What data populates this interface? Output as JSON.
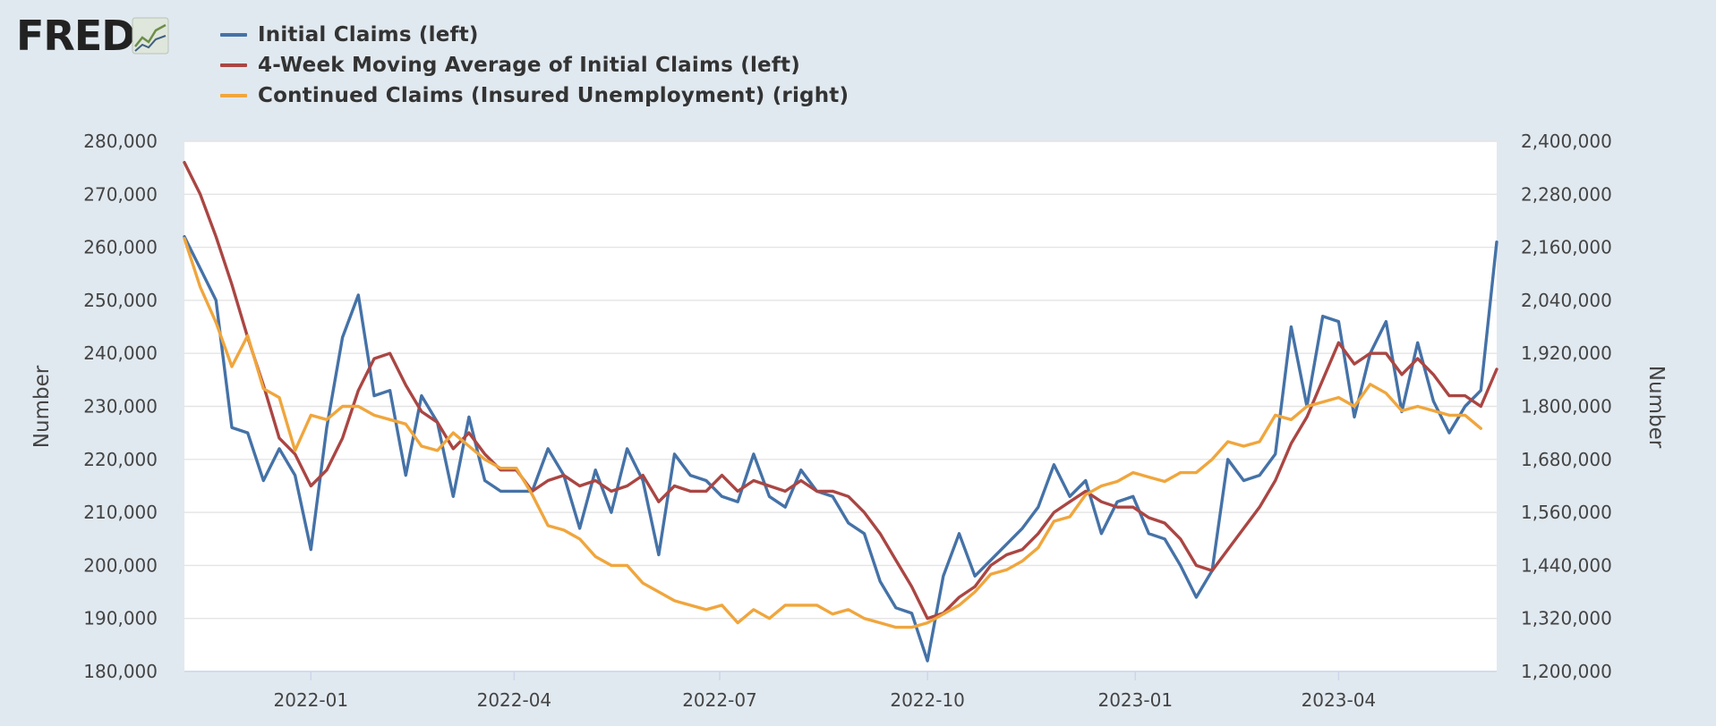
{
  "brand": {
    "name": "FRED",
    "icon": "fred-sparkline-icon"
  },
  "chart_data": {
    "type": "line",
    "legend_position": "top-left",
    "grid": true,
    "x_ticks": [
      {
        "date": "2022-01-01",
        "label": "2022-01"
      },
      {
        "date": "2022-04-01",
        "label": "2022-04"
      },
      {
        "date": "2022-07-01",
        "label": "2022-07"
      },
      {
        "date": "2022-10-01",
        "label": "2022-10"
      },
      {
        "date": "2023-01-01",
        "label": "2023-01"
      },
      {
        "date": "2023-04-01",
        "label": "2023-04"
      }
    ],
    "x_range": [
      "2021-11-06",
      "2023-06-10"
    ],
    "left_axis": {
      "title": "Number",
      "ylim": [
        180000,
        280000
      ],
      "ticks": [
        {
          "value": 180000,
          "label": "180,000"
        },
        {
          "value": 190000,
          "label": "190,000"
        },
        {
          "value": 200000,
          "label": "200,000"
        },
        {
          "value": 210000,
          "label": "210,000"
        },
        {
          "value": 220000,
          "label": "220,000"
        },
        {
          "value": 230000,
          "label": "230,000"
        },
        {
          "value": 240000,
          "label": "240,000"
        },
        {
          "value": 250000,
          "label": "250,000"
        },
        {
          "value": 260000,
          "label": "260,000"
        },
        {
          "value": 270000,
          "label": "270,000"
        },
        {
          "value": 280000,
          "label": "280,000"
        }
      ]
    },
    "right_axis": {
      "title": "Number",
      "ylim": [
        1200000,
        2400000
      ],
      "ticks": [
        {
          "value": 1200000,
          "label": "1,200,000"
        },
        {
          "value": 1320000,
          "label": "1,320,000"
        },
        {
          "value": 1440000,
          "label": "1,440,000"
        },
        {
          "value": 1560000,
          "label": "1,560,000"
        },
        {
          "value": 1680000,
          "label": "1,680,000"
        },
        {
          "value": 1800000,
          "label": "1,800,000"
        },
        {
          "value": 1920000,
          "label": "1,920,000"
        },
        {
          "value": 2040000,
          "label": "2,040,000"
        },
        {
          "value": 2160000,
          "label": "2,160,000"
        },
        {
          "value": 2280000,
          "label": "2,280,000"
        },
        {
          "value": 2400000,
          "label": "2,400,000"
        }
      ]
    },
    "series": [
      {
        "name": "Initial Claims (left)",
        "axis": "left",
        "color": "#4572a7",
        "start_date": "2021-11-06",
        "values": [
          262000,
          256000,
          250000,
          226000,
          225000,
          216000,
          222000,
          217000,
          203000,
          226000,
          243000,
          251000,
          232000,
          233000,
          217000,
          232000,
          227000,
          213000,
          228000,
          216000,
          214000,
          214000,
          214000,
          222000,
          217000,
          207000,
          218000,
          210000,
          222000,
          216000,
          202000,
          221000,
          217000,
          216000,
          213000,
          212000,
          221000,
          213000,
          211000,
          218000,
          214000,
          213000,
          208000,
          206000,
          197000,
          192000,
          191000,
          182000,
          198000,
          206000,
          198000,
          201000,
          204000,
          207000,
          211000,
          219000,
          213000,
          216000,
          206000,
          212000,
          213000,
          206000,
          205000,
          200000,
          194000,
          199000,
          220000,
          216000,
          217000,
          221000,
          245000,
          230000,
          247000,
          246000,
          228000,
          240000,
          246000,
          229000,
          242000,
          231000,
          225000,
          230000,
          233000,
          261000
        ]
      },
      {
        "name": "4-Week Moving Average of Initial Claims (left)",
        "axis": "left",
        "color": "#aa4643",
        "start_date": "2021-11-06",
        "values": [
          276000,
          270000,
          262000,
          253000,
          243000,
          234000,
          224000,
          221000,
          215000,
          218000,
          224000,
          233000,
          239000,
          240000,
          234000,
          229000,
          227000,
          222000,
          225000,
          221000,
          218000,
          218000,
          214000,
          216000,
          217000,
          215000,
          216000,
          214000,
          215000,
          217000,
          212000,
          215000,
          214000,
          214000,
          217000,
          214000,
          216000,
          215000,
          214000,
          216000,
          214000,
          214000,
          213000,
          210000,
          206000,
          201000,
          196000,
          190000,
          191000,
          194000,
          196000,
          200000,
          202000,
          203000,
          206000,
          210000,
          212000,
          214000,
          212000,
          211000,
          211000,
          209000,
          208000,
          205000,
          200000,
          199000,
          203000,
          207000,
          211000,
          216000,
          223000,
          228000,
          235000,
          242000,
          238000,
          240000,
          240000,
          236000,
          239000,
          236000,
          232000,
          232000,
          230000,
          237000
        ]
      },
      {
        "name": "Continued Claims (Insured Unemployment) (right)",
        "axis": "right",
        "color": "#f0a63d",
        "start_date": "2021-11-06",
        "values": [
          2180000,
          2070000,
          1990000,
          1890000,
          1960000,
          1840000,
          1820000,
          1700000,
          1780000,
          1770000,
          1800000,
          1800000,
          1780000,
          1770000,
          1760000,
          1710000,
          1700000,
          1740000,
          1710000,
          1680000,
          1660000,
          1660000,
          1600000,
          1530000,
          1520000,
          1500000,
          1460000,
          1440000,
          1440000,
          1400000,
          1380000,
          1360000,
          1350000,
          1340000,
          1350000,
          1310000,
          1340000,
          1320000,
          1350000,
          1350000,
          1350000,
          1330000,
          1340000,
          1320000,
          1310000,
          1300000,
          1300000,
          1310000,
          1330000,
          1350000,
          1380000,
          1420000,
          1430000,
          1450000,
          1480000,
          1540000,
          1550000,
          1600000,
          1620000,
          1630000,
          1650000,
          1640000,
          1630000,
          1650000,
          1650000,
          1680000,
          1720000,
          1710000,
          1720000,
          1780000,
          1770000,
          1800000,
          1810000,
          1820000,
          1800000,
          1850000,
          1830000,
          1790000,
          1800000,
          1790000,
          1780000,
          1780000,
          1750000
        ]
      }
    ]
  }
}
